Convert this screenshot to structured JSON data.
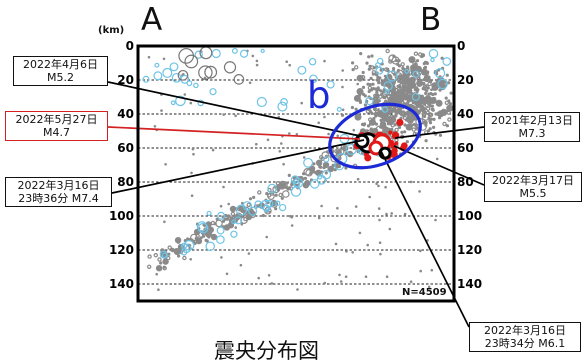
{
  "chart_data": {
    "type": "scatter",
    "title": "震央分布図",
    "section_start_label": "A",
    "section_end_label": "B",
    "depth_unit": "(km)",
    "ylim": [
      0,
      150
    ],
    "y_inverted": true,
    "yticks": [
      0,
      20,
      40,
      60,
      80,
      100,
      120,
      140
    ],
    "count_label": "N=4509",
    "region_label": "b",
    "region_color": "#1d2bd6",
    "grid": true,
    "colors": {
      "background_events": "#8a8a8a",
      "shallow_events": "#6ec3e6",
      "recent_events": "#e01818",
      "mainshock_ring": "#000000",
      "red_callout": "#d42222"
    },
    "annotations": [
      {
        "line1": "2022年4月6日",
        "line2": "M5.2",
        "depth_km": 55
      },
      {
        "line1": "2022年5月27日",
        "line2": "M4.7",
        "depth_km": 59,
        "highlight": true
      },
      {
        "line1": "2022年3月16日",
        "line2": "23時36分 M7.4",
        "depth_km": 57
      },
      {
        "line1": "2021年2月13日",
        "line2": "M7.3",
        "depth_km": 55
      },
      {
        "line1": "2022年3月17日",
        "line2": "M5.5",
        "depth_km": 63
      },
      {
        "line1": "2022年3月16日",
        "line2": "23時34分 M6.1",
        "depth_km": 58
      }
    ]
  }
}
